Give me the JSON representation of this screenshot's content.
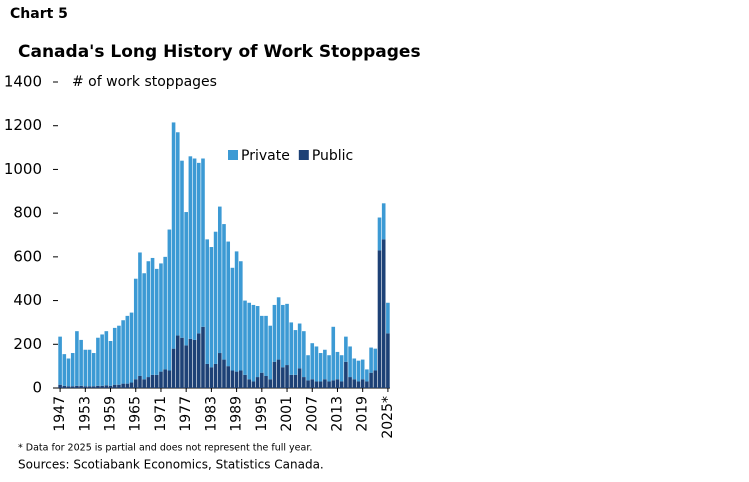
{
  "chart_label": "Chart 5",
  "chart_data": {
    "type": "stacked_bar",
    "title": "Canada's Long History of Work Stoppages",
    "y_label": "# of work stoppages",
    "categories": [
      "1947",
      null,
      null,
      null,
      null,
      null,
      "1953",
      null,
      null,
      null,
      null,
      null,
      "1959",
      null,
      null,
      null,
      null,
      null,
      "1965",
      null,
      null,
      null,
      null,
      null,
      "1971",
      null,
      null,
      null,
      null,
      null,
      "1977",
      null,
      null,
      null,
      null,
      null,
      "1983",
      null,
      null,
      null,
      null,
      null,
      "1989",
      null,
      null,
      null,
      null,
      null,
      "1995",
      null,
      null,
      null,
      null,
      null,
      "2001",
      null,
      null,
      null,
      null,
      null,
      "2007",
      null,
      null,
      null,
      null,
      null,
      "2013",
      null,
      null,
      null,
      null,
      null,
      "2019",
      null,
      null,
      null,
      null,
      null,
      "2025*"
    ],
    "series": [
      {
        "name": "Private",
        "color": "#3c9ad4",
        "values": [
          220,
          145,
          127,
          152,
          250,
          210,
          167,
          167,
          152,
          220,
          235,
          248,
          205,
          260,
          270,
          290,
          310,
          320,
          460,
          565,
          485,
          530,
          535,
          485,
          495,
          515,
          645,
          1035,
          930,
          810,
          610,
          835,
          830,
          780,
          770,
          570,
          550,
          605,
          670,
          620,
          570,
          470,
          550,
          500,
          340,
          350,
          350,
          325,
          260,
          275,
          245,
          260,
          285,
          285,
          280,
          240,
          205,
          205,
          210,
          115,
          165,
          160,
          130,
          135,
          120,
          245,
          125,
          120,
          115,
          140,
          95,
          95,
          90,
          55,
          115,
          100,
          150,
          165,
          140
        ]
      },
      {
        "name": "Public",
        "color": "#1d4176",
        "values": [
          15,
          10,
          8,
          8,
          10,
          10,
          8,
          8,
          8,
          10,
          10,
          12,
          10,
          15,
          15,
          20,
          20,
          25,
          40,
          55,
          40,
          50,
          60,
          60,
          75,
          85,
          80,
          180,
          240,
          230,
          195,
          225,
          220,
          250,
          280,
          110,
          95,
          110,
          160,
          130,
          100,
          80,
          75,
          80,
          60,
          40,
          30,
          50,
          70,
          55,
          40,
          120,
          130,
          95,
          105,
          60,
          60,
          90,
          50,
          35,
          40,
          30,
          30,
          40,
          30,
          35,
          40,
          30,
          120,
          50,
          40,
          30,
          40,
          30,
          70,
          80,
          630,
          680,
          250
        ]
      }
    ],
    "stack_order": [
      "Public",
      "Private"
    ],
    "ylim": [
      0,
      1400
    ],
    "yticks": [
      0,
      200,
      400,
      600,
      800,
      1000,
      1200,
      1400
    ],
    "footnote": "* Data for 2025 is partial and does not represent the full year.",
    "source": "Sources: Scotiabank Economics, Statistics Canada."
  }
}
